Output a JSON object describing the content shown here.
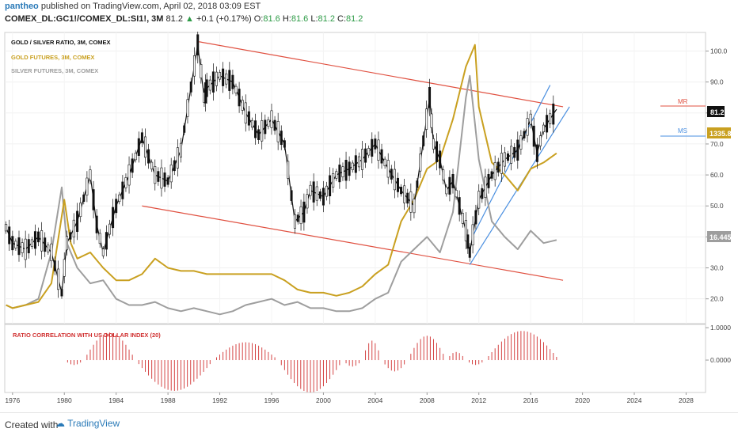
{
  "header": {
    "user": "pantheo",
    "published": "published on TradingView.com, April 02, 2018 03:09 EST",
    "symbol": "COMEX_DL:GC1!/COMEX_DL:SI1!, 3M",
    "last": "81.2",
    "change_arrow": "▲",
    "change": "+0.1 (+0.17%)",
    "o_label": "O:",
    "o_val": "81.6",
    "h_label": "H:",
    "h_val": "81.6",
    "l_label": "L:",
    "l_val": "81.2",
    "c_label": "C:",
    "c_val": "81.2"
  },
  "legend": {
    "ratio": "GOLD / SILVER RATIO, 3M, COMEX",
    "gold": "GOLD FUTURES, 3M, COMEX",
    "silver": "SILVER FUTURES, 3M, COMEX",
    "indicator": "RATIO CORRELATION WITH US DOLLAR INDEX (20)"
  },
  "labels": {
    "mr": "MR",
    "ms": "MS",
    "price_ratio": "81.2",
    "price_gold": "1335.8",
    "price_silver": "16.445"
  },
  "colors": {
    "ratio": "#111111",
    "gold": "#c9a020",
    "silver": "#9e9e9e",
    "channel_red": "#e05040",
    "channel_blue": "#4a8fe0",
    "indicator": "#d03030"
  },
  "footer": {
    "created": "Created with",
    "brand": "TradingView"
  },
  "chart_data": {
    "type": "line",
    "x_ticks": [
      1976,
      1980,
      1984,
      1988,
      1992,
      1996,
      2000,
      2004,
      2008,
      2012,
      2016,
      2020,
      2024,
      2028
    ],
    "y_ticks": [
      20.0,
      30.0,
      40.0,
      50.0,
      60.0,
      70.0,
      80.0,
      90.0,
      100.0
    ],
    "ylim": [
      12,
      106
    ],
    "xlim": [
      1975.4,
      2029.5
    ],
    "indicator_ticks": [
      "1.0000",
      "0.0000"
    ],
    "indicator_ylim": [
      -1.0,
      1.1
    ],
    "series": [
      {
        "name": "GOLD / SILVER RATIO, 3M, COMEX",
        "x": [
          1975.5,
          1976,
          1977,
          1978,
          1979,
          1979.8,
          1980.2,
          1981,
          1982,
          1982.5,
          1983,
          1984,
          1985,
          1986,
          1987,
          1988,
          1989,
          1990.3,
          1990.8,
          1991,
          1992,
          1993,
          1994,
          1995,
          1996,
          1997,
          1997.8,
          1998.5,
          1999,
          2000,
          2001,
          2002,
          2003,
          2004,
          2005,
          2006,
          2007,
          2008.2,
          2008.5,
          2009,
          2009.5,
          2010,
          2011,
          2011.3,
          2012,
          2013,
          2014,
          2015,
          2016,
          2016.5,
          2017,
          2018
        ],
        "y": [
          43,
          38,
          36,
          40,
          35,
          22,
          38,
          45,
          60,
          44,
          35,
          50,
          60,
          72,
          60,
          58,
          68,
          102,
          85,
          88,
          92,
          90,
          80,
          73,
          78,
          70,
          45,
          48,
          55,
          53,
          60,
          62,
          65,
          70,
          62,
          55,
          50,
          85,
          70,
          65,
          55,
          58,
          42,
          35,
          52,
          60,
          65,
          68,
          78,
          67,
          75,
          81.2
        ]
      },
      {
        "name": "GOLD FUTURES, 3M, COMEX",
        "x": [
          1975.5,
          1976,
          1977,
          1978,
          1979,
          1980,
          1980.5,
          1981,
          1982,
          1983,
          1984,
          1985,
          1986,
          1987,
          1988,
          1989,
          1990,
          1991,
          1992,
          1993,
          1994,
          1995,
          1996,
          1997,
          1998,
          1999,
          2000,
          2001,
          2002,
          2003,
          2004,
          2005,
          2006,
          2007,
          2008,
          2009,
          2010,
          2011,
          2011.7,
          2012,
          2013,
          2014,
          2015,
          2016,
          2017,
          2018
        ],
        "y": [
          18,
          17,
          18,
          19,
          25,
          52,
          38,
          33,
          35,
          30,
          26,
          26,
          28,
          33,
          30,
          29,
          29,
          28,
          28,
          28,
          28,
          28,
          28,
          26,
          23,
          22,
          22,
          21,
          22,
          24,
          28,
          31,
          45,
          52,
          62,
          65,
          78,
          95,
          102,
          82,
          64,
          60,
          55,
          62,
          64,
          67
        ]
      },
      {
        "name": "SILVER FUTURES, 3M, COMEX",
        "x": [
          1975.5,
          1976,
          1977,
          1978,
          1979,
          1979.8,
          1980.2,
          1981,
          1982,
          1983,
          1984,
          1985,
          1986,
          1987,
          1988,
          1989,
          1990,
          1991,
          1992,
          1993,
          1994,
          1995,
          1996,
          1997,
          1998,
          1999,
          2000,
          2001,
          2002,
          2003,
          2004,
          2005,
          2006,
          2007,
          2008,
          2009,
          2010,
          2011,
          2011.3,
          2012,
          2013,
          2014,
          2015,
          2016,
          2017,
          2018
        ],
        "y": [
          18,
          17,
          18,
          20,
          35,
          56,
          38,
          30,
          25,
          26,
          20,
          18,
          18,
          19,
          17,
          16,
          17,
          16,
          15,
          16,
          18,
          19,
          20,
          18,
          19,
          17,
          17,
          16,
          16,
          17,
          20,
          22,
          32,
          36,
          40,
          35,
          48,
          85,
          92,
          65,
          45,
          40,
          36,
          42,
          38,
          39
        ]
      }
    ],
    "channels": [
      {
        "name": "",
        "color": "red",
        "x": [
          1990.4,
          2018.5
        ],
        "y": [
          103,
          82
        ]
      },
      {
        "name": "",
        "color": "red",
        "x": [
          1986,
          2018.5
        ],
        "y": [
          50,
          26
        ]
      },
      {
        "name": "",
        "color": "blue",
        "x": [
          2011.5,
          2017.5
        ],
        "y": [
          40,
          89
        ]
      },
      {
        "name": "",
        "color": "blue",
        "x": [
          2011.3,
          2019
        ],
        "y": [
          31,
          82
        ]
      }
    ],
    "indicator": {
      "name": "RATIO CORRELATION WITH US DOLLAR INDEX (20)",
      "x_start": 1980,
      "x_end": 2018.2,
      "segments": [
        {
          "x0": 1980,
          "x1": 1981.5,
          "amp": -0.15
        },
        {
          "x0": 1981.5,
          "x1": 1985.5,
          "amp": 0.85
        },
        {
          "x0": 1985.5,
          "x1": 1991.5,
          "amp": -0.95
        },
        {
          "x0": 1991.5,
          "x1": 1996.5,
          "amp": 0.55
        },
        {
          "x0": 1996.5,
          "x1": 2001.5,
          "amp": -1.0
        },
        {
          "x0": 2001.5,
          "x1": 2003,
          "amp": -0.2
        },
        {
          "x0": 2003,
          "x1": 2004.5,
          "amp": 0.6
        },
        {
          "x0": 2004.5,
          "x1": 2006.5,
          "amp": -0.35
        },
        {
          "x0": 2006.5,
          "x1": 2009.5,
          "amp": 0.75
        },
        {
          "x0": 2009.5,
          "x1": 2011,
          "amp": 0.25
        },
        {
          "x0": 2011,
          "x1": 2012.5,
          "amp": -0.15
        },
        {
          "x0": 2012.5,
          "x1": 2018.2,
          "amp": 0.9
        }
      ]
    }
  }
}
